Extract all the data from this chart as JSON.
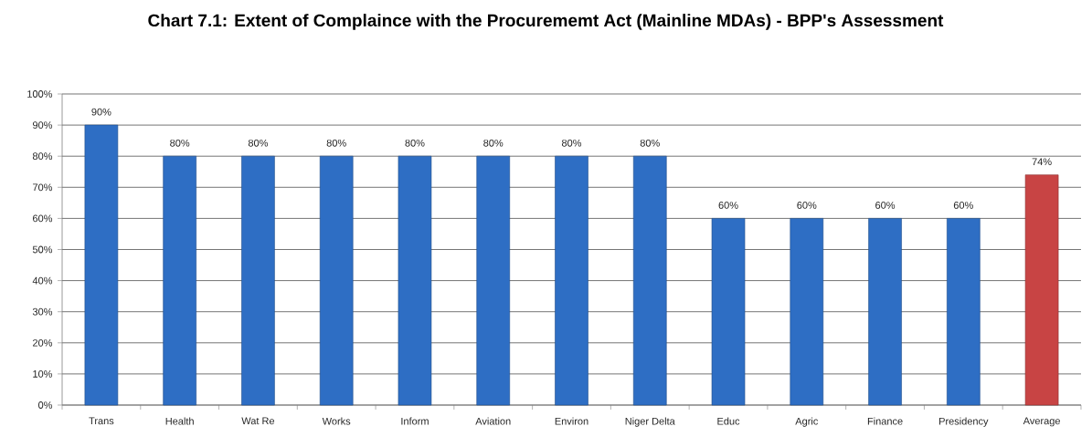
{
  "chart_data": {
    "type": "bar",
    "title": "Chart 7.1: Extent of Complaince with the Procurememt Act (Mainline MDAs) - BPP's Assessment",
    "categories": [
      "Trans",
      "Health",
      "Wat Re",
      "Works",
      "Inform",
      "Aviation",
      "Environ",
      "Niger Delta",
      "Educ",
      "Agric",
      "Finance",
      "Presidency",
      "Average"
    ],
    "values": [
      90,
      80,
      80,
      80,
      80,
      80,
      80,
      80,
      60,
      60,
      60,
      60,
      74
    ],
    "colors": [
      "#2e6ec4",
      "#2e6ec4",
      "#2e6ec4",
      "#2e6ec4",
      "#2e6ec4",
      "#2e6ec4",
      "#2e6ec4",
      "#2e6ec4",
      "#2e6ec4",
      "#2e6ec4",
      "#2e6ec4",
      "#2e6ec4",
      "#c84444"
    ],
    "value_labels": [
      "90%",
      "80%",
      "80%",
      "80%",
      "80%",
      "80%",
      "80%",
      "80%",
      "60%",
      "60%",
      "60%",
      "60%",
      "74%"
    ],
    "ylim": [
      0,
      100
    ],
    "yticks": [
      {
        "value": 0,
        "label": "0%"
      },
      {
        "value": 10,
        "label": "10%"
      },
      {
        "value": 20,
        "label": "20%"
      },
      {
        "value": 30,
        "label": "30%"
      },
      {
        "value": 40,
        "label": "40%"
      },
      {
        "value": 50,
        "label": "50%"
      },
      {
        "value": 60,
        "label": "60%"
      },
      {
        "value": 70,
        "label": "70%"
      },
      {
        "value": 80,
        "label": "80%"
      },
      {
        "value": 90,
        "label": "90%"
      },
      {
        "value": 100,
        "label": "100%"
      }
    ],
    "grid": "y"
  }
}
